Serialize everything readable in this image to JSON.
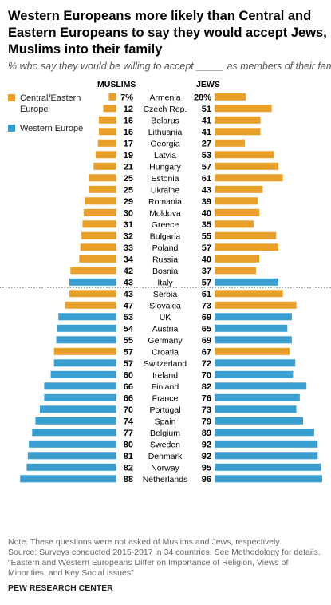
{
  "title": "Western Europeans more likely than Central and Eastern Europeans to say they would accept Jews, Muslims into their family",
  "subtitle": "% who say they would be willing to accept _____ as members of their family",
  "left_header": "MUSLIMS",
  "right_header": "JEWS",
  "legend": [
    {
      "label": "Central/Eastern Europe",
      "color": "#e8a02b"
    },
    {
      "label": "Western Europe",
      "color": "#3a9ed0"
    }
  ],
  "note": "Note: These questions were not asked of Muslims and Jews, respectively.",
  "source": "Source: Surveys conducted 2015-2017 in 34 countries. See Methodology for details.",
  "report": "“Eastern and Western Europeans Differ on Importance of Religion, Views of Minorities, and Key Social Issues”",
  "brand": "PEW RESEARCH CENTER",
  "chart_data": {
    "type": "bar",
    "orientation": "horizontal-butterfly",
    "unit": "%",
    "series": [
      {
        "name": "MUSLIMS",
        "side": "left"
      },
      {
        "name": "JEWS",
        "side": "right"
      }
    ],
    "rows": [
      {
        "country": "Armenia",
        "muslims": 7,
        "jews": 28,
        "region": "Central/Eastern Europe",
        "muslims_label": "7%",
        "jews_label": "28%"
      },
      {
        "country": "Czech Rep.",
        "muslims": 12,
        "jews": 51,
        "region": "Central/Eastern Europe",
        "muslims_label": "12",
        "jews_label": "51"
      },
      {
        "country": "Belarus",
        "muslims": 16,
        "jews": 41,
        "region": "Central/Eastern Europe",
        "muslims_label": "16",
        "jews_label": "41"
      },
      {
        "country": "Lithuania",
        "muslims": 16,
        "jews": 41,
        "region": "Central/Eastern Europe",
        "muslims_label": "16",
        "jews_label": "41"
      },
      {
        "country": "Georgia",
        "muslims": 17,
        "jews": 27,
        "region": "Central/Eastern Europe",
        "muslims_label": "17",
        "jews_label": "27"
      },
      {
        "country": "Latvia",
        "muslims": 19,
        "jews": 53,
        "region": "Central/Eastern Europe",
        "muslims_label": "19",
        "jews_label": "53"
      },
      {
        "country": "Hungary",
        "muslims": 21,
        "jews": 57,
        "region": "Central/Eastern Europe",
        "muslims_label": "21",
        "jews_label": "57"
      },
      {
        "country": "Estonia",
        "muslims": 25,
        "jews": 61,
        "region": "Central/Eastern Europe",
        "muslims_label": "25",
        "jews_label": "61"
      },
      {
        "country": "Ukraine",
        "muslims": 25,
        "jews": 43,
        "region": "Central/Eastern Europe",
        "muslims_label": "25",
        "jews_label": "43"
      },
      {
        "country": "Romania",
        "muslims": 29,
        "jews": 39,
        "region": "Central/Eastern Europe",
        "muslims_label": "29",
        "jews_label": "39"
      },
      {
        "country": "Moldova",
        "muslims": 30,
        "jews": 40,
        "region": "Central/Eastern Europe",
        "muslims_label": "30",
        "jews_label": "40"
      },
      {
        "country": "Greece",
        "muslims": 31,
        "jews": 35,
        "region": "Central/Eastern Europe",
        "muslims_label": "31",
        "jews_label": "35"
      },
      {
        "country": "Bulgaria",
        "muslims": 32,
        "jews": 55,
        "region": "Central/Eastern Europe",
        "muslims_label": "32",
        "jews_label": "55"
      },
      {
        "country": "Poland",
        "muslims": 33,
        "jews": 57,
        "region": "Central/Eastern Europe",
        "muslims_label": "33",
        "jews_label": "57"
      },
      {
        "country": "Russia",
        "muslims": 34,
        "jews": 40,
        "region": "Central/Eastern Europe",
        "muslims_label": "34",
        "jews_label": "40"
      },
      {
        "country": "Bosnia",
        "muslims": 42,
        "jews": 37,
        "region": "Central/Eastern Europe",
        "muslims_label": "42",
        "jews_label": "37"
      },
      {
        "country": "Italy",
        "muslims": 43,
        "jews": 57,
        "region": "Western Europe",
        "muslims_label": "43",
        "jews_label": "57"
      },
      {
        "country": "Serbia",
        "muslims": 43,
        "jews": 61,
        "region": "Central/Eastern Europe",
        "muslims_label": "43",
        "jews_label": "61"
      },
      {
        "country": "Slovakia",
        "muslims": 47,
        "jews": 73,
        "region": "Central/Eastern Europe",
        "muslims_label": "47",
        "jews_label": "73"
      },
      {
        "country": "UK",
        "muslims": 53,
        "jews": 69,
        "region": "Western Europe",
        "muslims_label": "53",
        "jews_label": "69"
      },
      {
        "country": "Austria",
        "muslims": 54,
        "jews": 65,
        "region": "Western Europe",
        "muslims_label": "54",
        "jews_label": "65"
      },
      {
        "country": "Germany",
        "muslims": 55,
        "jews": 69,
        "region": "Western Europe",
        "muslims_label": "55",
        "jews_label": "69"
      },
      {
        "country": "Croatia",
        "muslims": 57,
        "jews": 67,
        "region": "Central/Eastern Europe",
        "muslims_label": "57",
        "jews_label": "67"
      },
      {
        "country": "Switzerland",
        "muslims": 57,
        "jews": 72,
        "region": "Western Europe",
        "muslims_label": "57",
        "jews_label": "72"
      },
      {
        "country": "Ireland",
        "muslims": 60,
        "jews": 70,
        "region": "Western Europe",
        "muslims_label": "60",
        "jews_label": "70"
      },
      {
        "country": "Finland",
        "muslims": 66,
        "jews": 82,
        "region": "Western Europe",
        "muslims_label": "66",
        "jews_label": "82"
      },
      {
        "country": "France",
        "muslims": 66,
        "jews": 76,
        "region": "Western Europe",
        "muslims_label": "66",
        "jews_label": "76"
      },
      {
        "country": "Portugal",
        "muslims": 70,
        "jews": 73,
        "region": "Western Europe",
        "muslims_label": "70",
        "jews_label": "73"
      },
      {
        "country": "Spain",
        "muslims": 74,
        "jews": 79,
        "region": "Western Europe",
        "muslims_label": "74",
        "jews_label": "79"
      },
      {
        "country": "Belgium",
        "muslims": 77,
        "jews": 89,
        "region": "Western Europe",
        "muslims_label": "77",
        "jews_label": "89"
      },
      {
        "country": "Sweden",
        "muslims": 80,
        "jews": 92,
        "region": "Western Europe",
        "muslims_label": "80",
        "jews_label": "92"
      },
      {
        "country": "Denmark",
        "muslims": 81,
        "jews": 92,
        "region": "Western Europe",
        "muslims_label": "81",
        "jews_label": "92"
      },
      {
        "country": "Norway",
        "muslims": 82,
        "jews": 95,
        "region": "Western Europe",
        "muslims_label": "82",
        "jews_label": "95"
      },
      {
        "country": "Netherlands",
        "muslims": 88,
        "jews": 96,
        "region": "Western Europe",
        "muslims_label": "88",
        "jews_label": "96"
      }
    ],
    "divider_after": "Italy"
  }
}
